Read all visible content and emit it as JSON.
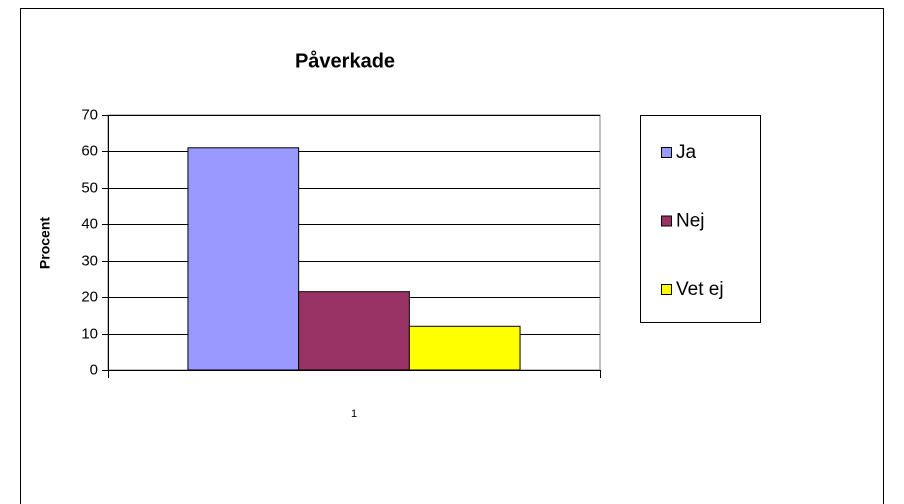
{
  "chart_data": {
    "type": "bar",
    "title": "Påverkade",
    "y_label": "Procent",
    "categories": [
      "1"
    ],
    "series": [
      {
        "name": "Ja",
        "color": "#9999ff",
        "values": [
          61
        ]
      },
      {
        "name": "Nej",
        "color": "#993366",
        "values": [
          21.5
        ]
      },
      {
        "name": "Vet ej",
        "color": "#ffff00",
        "values": [
          12
        ]
      }
    ],
    "ylim": [
      0,
      70
    ],
    "yticks": [
      0,
      10,
      20,
      30,
      40,
      50,
      60,
      70
    ],
    "grid": true,
    "legend": "right"
  }
}
